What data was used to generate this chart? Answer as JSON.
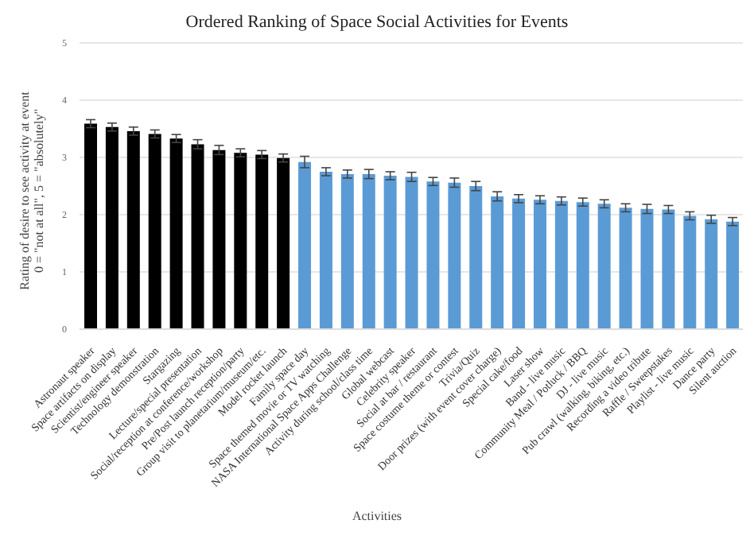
{
  "chart_data": {
    "type": "bar",
    "title": "Ordered Ranking of Space Social Activities for Events",
    "xlabel": "Activities",
    "ylabel": "Rating of desire to see activity at event\n0 = \"not at all\", 5 = \"absolutely\"",
    "categories": [
      "Astronaut speaker",
      "Space artifacts on display",
      "Scientist/engineer speaker",
      "Technology demonstration",
      "Stargazing",
      "Lecture/special presentation",
      "Social/reception at conference/workshop",
      "Pre/Post launch reception/party",
      "Group visit to planetarium/museum/etc.",
      "Model rocket launch",
      "Family space day",
      "Space themed movie or TV watching",
      "NASA International Space Apps Challenge",
      "Activity during school/class time",
      "Global webcast",
      "Celebrity speaker",
      "Social at bar / restaurant",
      "Space costume theme or contest",
      "Trivia/Quiz",
      "Door prizes (with event cover charge)",
      "Special cake/food",
      "Laser show",
      "Band - live music",
      "Community Meal / Potluck / BBQ",
      "DJ - live music",
      "Pub crawl (walking, biking, etc.)",
      "Recording a video tribute",
      "Raffle / Sweepstakes",
      "Playlist - live music",
      "Dance party",
      "Silent auction"
    ],
    "values": [
      3.59,
      3.53,
      3.46,
      3.41,
      3.33,
      3.23,
      3.13,
      3.08,
      3.05,
      2.99,
      2.92,
      2.75,
      2.71,
      2.71,
      2.68,
      2.66,
      2.58,
      2.56,
      2.5,
      2.32,
      2.28,
      2.26,
      2.24,
      2.22,
      2.19,
      2.12,
      2.1,
      2.09,
      1.98,
      1.92,
      1.88
    ],
    "errors": [
      0.07,
      0.07,
      0.07,
      0.07,
      0.07,
      0.08,
      0.08,
      0.07,
      0.07,
      0.07,
      0.1,
      0.07,
      0.07,
      0.08,
      0.07,
      0.08,
      0.07,
      0.08,
      0.08,
      0.08,
      0.07,
      0.07,
      0.07,
      0.07,
      0.07,
      0.07,
      0.08,
      0.07,
      0.07,
      0.07,
      0.07
    ],
    "colors": [
      "#000000",
      "#000000",
      "#000000",
      "#000000",
      "#000000",
      "#000000",
      "#000000",
      "#000000",
      "#000000",
      "#000000",
      "#5b9bd5",
      "#5b9bd5",
      "#5b9bd5",
      "#5b9bd5",
      "#5b9bd5",
      "#5b9bd5",
      "#5b9bd5",
      "#5b9bd5",
      "#5b9bd5",
      "#5b9bd5",
      "#5b9bd5",
      "#5b9bd5",
      "#5b9bd5",
      "#5b9bd5",
      "#5b9bd5",
      "#5b9bd5",
      "#5b9bd5",
      "#5b9bd5",
      "#5b9bd5",
      "#5b9bd5",
      "#5b9bd5"
    ],
    "ylim": [
      0,
      5
    ],
    "yticks": [
      0,
      1,
      2,
      3,
      4,
      5
    ],
    "grid": "y"
  }
}
